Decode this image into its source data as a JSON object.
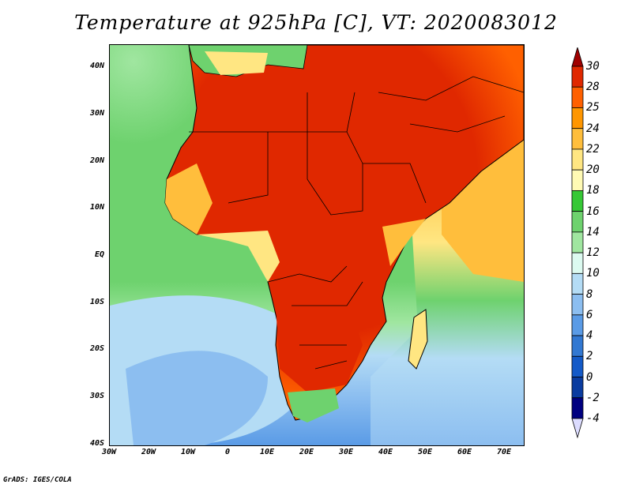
{
  "title": "Temperature at 925hPa [C], VT: 2020083012",
  "credit": "GrADS: IGES/COLA",
  "map": {
    "lat_labels": [
      "40N",
      "30N",
      "20N",
      "10N",
      "EQ",
      "10S",
      "20S",
      "30S",
      "40S"
    ],
    "lon_labels": [
      "30W",
      "20W",
      "10W",
      "0",
      "10E",
      "20E",
      "30E",
      "40E",
      "50E",
      "60E",
      "70E"
    ],
    "extent": {
      "lon_min": -30,
      "lon_max": 75,
      "lat_min": -40,
      "lat_max": 45
    }
  },
  "colorbar": {
    "labels": [
      "30",
      "28",
      "25",
      "24",
      "22",
      "20",
      "18",
      "16",
      "14",
      "12",
      "10",
      "8",
      "6",
      "4",
      "2",
      "0",
      "-2",
      "-4"
    ],
    "colors": [
      "#a00000",
      "#e02800",
      "#ff6000",
      "#ff9600",
      "#ffbe3c",
      "#ffe682",
      "#fffab4",
      "#36c836",
      "#6ed26e",
      "#a0e6a0",
      "#dcfaf0",
      "#b4dcf5",
      "#8cbef0",
      "#5a9be6",
      "#3278d2",
      "#145ac8",
      "#0a3ca0",
      "#000080",
      "#dcdcff"
    ]
  },
  "colors": {
    "land_outline": "#000000",
    "ocean_mid": "#6ed26e"
  }
}
